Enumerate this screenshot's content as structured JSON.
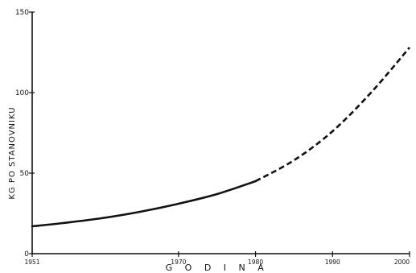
{
  "chart_data": {
    "type": "line",
    "xlabel": "G O D I N A",
    "ylabel": "KG PO STANOVNIKU",
    "xlim": [
      1951,
      2000
    ],
    "ylim": [
      0,
      150
    ],
    "x_ticks": [
      1951,
      1970,
      1980,
      1990,
      2000
    ],
    "x_tick_labels": [
      "1951",
      "1970",
      "1980",
      "1990",
      "2000"
    ],
    "y_ticks": [
      0,
      50,
      100,
      150
    ],
    "y_tick_labels": [
      "0",
      "50",
      "100",
      "150"
    ],
    "grid": false,
    "series": [
      {
        "style": "solid",
        "x": [
          1951,
          1955,
          1960,
          1965,
          1970,
          1975,
          1980
        ],
        "y": [
          17,
          19,
          22,
          26,
          31,
          37,
          45
        ]
      },
      {
        "style": "dashed",
        "x": [
          1980,
          1985,
          1990,
          1995,
          2000
        ],
        "y": [
          45,
          58,
          76,
          100,
          128
        ]
      }
    ]
  }
}
